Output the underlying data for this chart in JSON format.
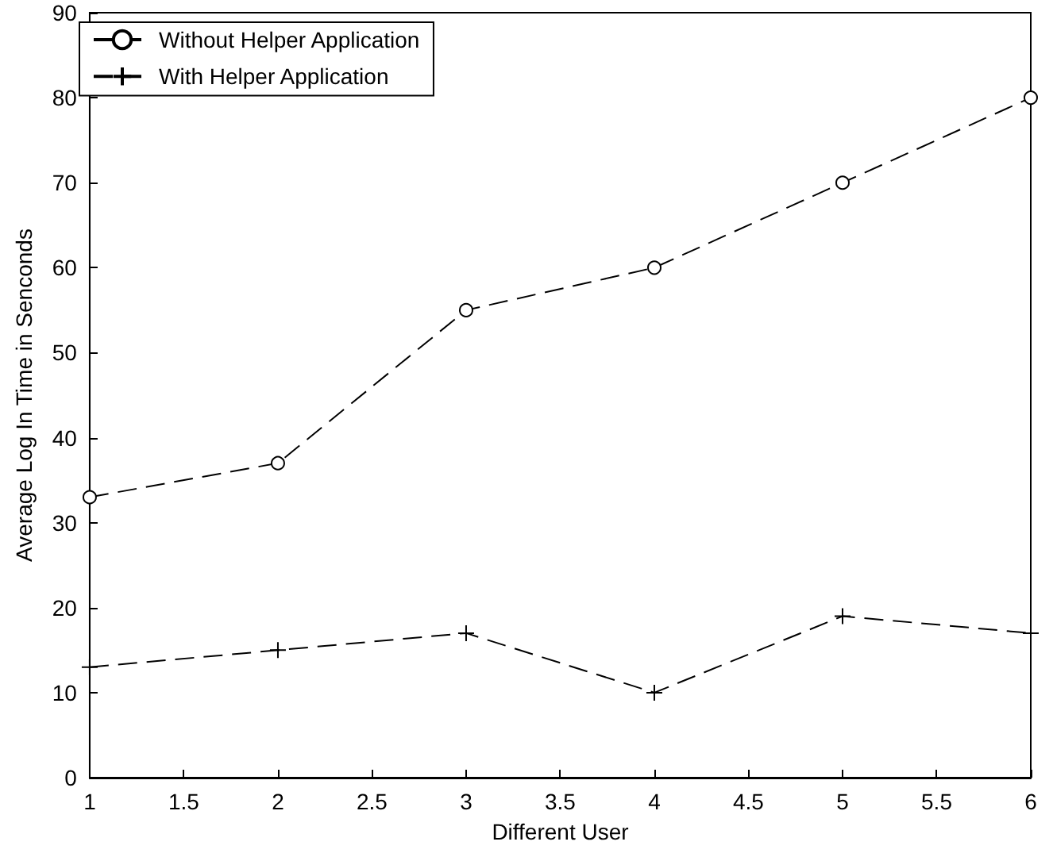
{
  "chart_data": {
    "type": "line",
    "xlabel": "Different User",
    "ylabel": "Average Log In Time in Senconds",
    "x": [
      1,
      2,
      3,
      4,
      5,
      6
    ],
    "series": [
      {
        "name": "Without Helper Application",
        "color": "#000000",
        "marker": "circle",
        "values": [
          33,
          37,
          55,
          60,
          70,
          80
        ]
      },
      {
        "name": "With Helper Application",
        "color": "#000000",
        "marker": "cross",
        "values": [
          13,
          15,
          17,
          10,
          19,
          17
        ]
      }
    ],
    "xlim": [
      1,
      6
    ],
    "xticks": [
      1,
      1.5,
      2,
      2.5,
      3,
      3.5,
      4,
      4.5,
      5,
      5.5,
      6
    ],
    "ylim": [
      0,
      90
    ],
    "yticks": [
      0,
      10,
      20,
      30,
      40,
      50,
      60,
      70,
      80,
      90
    ],
    "line_style": "dashed",
    "grid": false,
    "legend": "top left"
  }
}
